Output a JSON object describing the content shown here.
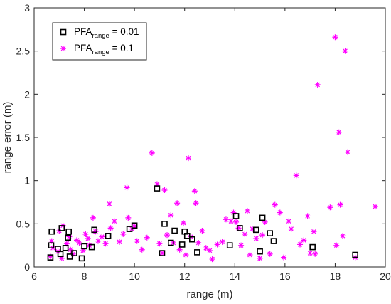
{
  "chart_data": {
    "type": "scatter",
    "title": "",
    "xlabel": "range (m)",
    "ylabel": "range error (m)",
    "xlim": [
      6,
      20
    ],
    "ylim": [
      0,
      3
    ],
    "xticks": [
      6,
      8,
      10,
      12,
      14,
      16,
      18,
      20
    ],
    "yticks": [
      0,
      0.5,
      1,
      1.5,
      2,
      2.5,
      3
    ],
    "grid": false,
    "box": true,
    "legend": {
      "placement": "top-left",
      "entries": [
        {
          "main": "PFA",
          "sub": "range",
          "rest": " = 0.01"
        },
        {
          "main": "PFA",
          "sub": "range",
          "rest": " = 0.1"
        }
      ]
    },
    "series": [
      {
        "marker": "square",
        "color": "#000000",
        "x": [
          6.65,
          6.68,
          6.7,
          6.95,
          7.05,
          7.1,
          7.25,
          7.35,
          7.38,
          7.42,
          7.6,
          7.9,
          8.0,
          8.3,
          8.4,
          8.95,
          9.8,
          10.0,
          10.9,
          11.1,
          11.2,
          11.45,
          11.6,
          11.9,
          12.0,
          12.1,
          12.3,
          12.5,
          13.8,
          14.05,
          14.2,
          14.85,
          15.0,
          15.1,
          15.4,
          15.55,
          17.1,
          18.8
        ],
        "y": [
          0.11,
          0.25,
          0.41,
          0.21,
          0.15,
          0.45,
          0.22,
          0.34,
          0.41,
          0.12,
          0.16,
          0.1,
          0.24,
          0.23,
          0.43,
          0.36,
          0.44,
          0.48,
          0.91,
          0.16,
          0.5,
          0.28,
          0.42,
          0.26,
          0.41,
          0.36,
          0.32,
          0.17,
          0.25,
          0.59,
          0.45,
          0.43,
          0.18,
          0.57,
          0.39,
          0.3,
          0.23,
          0.14
        ]
      },
      {
        "marker": "star",
        "color": "#ff00ff",
        "x": [
          6.65,
          6.7,
          6.75,
          6.95,
          7.0,
          7.1,
          7.15,
          7.3,
          7.4,
          7.45,
          7.55,
          7.7,
          7.8,
          7.95,
          8.05,
          8.15,
          8.2,
          8.35,
          8.45,
          8.55,
          8.7,
          8.85,
          9.0,
          9.05,
          9.2,
          9.4,
          9.55,
          9.7,
          9.75,
          9.9,
          10.0,
          10.1,
          10.3,
          10.5,
          10.7,
          10.9,
          11.0,
          11.1,
          11.2,
          11.3,
          11.45,
          11.55,
          11.7,
          11.8,
          11.95,
          12.05,
          12.15,
          12.25,
          12.4,
          12.45,
          12.55,
          12.7,
          12.85,
          13.0,
          13.1,
          13.3,
          13.5,
          13.65,
          13.85,
          13.95,
          14.05,
          14.15,
          14.25,
          14.4,
          14.5,
          14.6,
          14.7,
          14.85,
          15.0,
          15.1,
          15.2,
          15.4,
          15.6,
          15.8,
          15.95,
          16.15,
          16.25,
          16.45,
          16.6,
          16.75,
          16.9,
          17.0,
          17.15,
          17.2,
          17.3,
          17.8,
          18.0,
          18.05,
          18.15,
          18.2,
          18.3,
          18.4,
          18.5,
          18.8,
          19.6
        ],
        "y": [
          0.12,
          0.3,
          0.22,
          0.18,
          0.42,
          0.1,
          0.48,
          0.27,
          0.35,
          0.2,
          0.15,
          0.31,
          0.28,
          0.19,
          0.38,
          0.33,
          0.25,
          0.57,
          0.41,
          0.3,
          0.35,
          0.27,
          0.73,
          0.45,
          0.53,
          0.29,
          0.38,
          0.92,
          0.57,
          0.44,
          0.47,
          0.3,
          0.2,
          0.34,
          1.32,
          0.96,
          0.27,
          0.16,
          0.89,
          0.37,
          0.6,
          0.28,
          0.74,
          0.2,
          0.51,
          0.14,
          1.26,
          0.35,
          0.88,
          0.74,
          0.28,
          0.42,
          0.22,
          0.19,
          0.09,
          0.26,
          0.29,
          0.55,
          0.53,
          0.63,
          0.52,
          0.45,
          0.25,
          0.38,
          0.65,
          0.14,
          0.44,
          0.33,
          0.1,
          0.37,
          0.52,
          0.15,
          0.72,
          0.63,
          0.11,
          0.53,
          0.44,
          1.06,
          0.26,
          0.31,
          0.59,
          0.16,
          0.41,
          0.15,
          2.11,
          0.69,
          2.66,
          0.25,
          1.56,
          0.72,
          0.36,
          2.5,
          1.33,
          0.11,
          0.7
        ]
      }
    ]
  }
}
